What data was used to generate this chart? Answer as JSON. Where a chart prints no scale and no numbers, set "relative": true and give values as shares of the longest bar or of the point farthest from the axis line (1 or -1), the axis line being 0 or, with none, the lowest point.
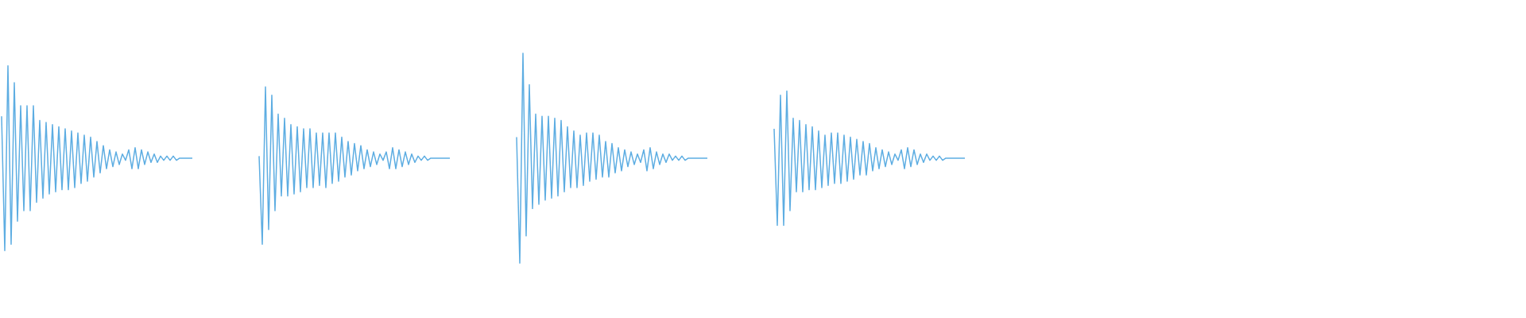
{
  "chart_data": {
    "type": "line",
    "relative": true,
    "categories": [
      null,
      null,
      null,
      null,
      null,
      null,
      null,
      null,
      null,
      null,
      null,
      null,
      null,
      null,
      null,
      null,
      null,
      null,
      null,
      null,
      null,
      null,
      null,
      null,
      null,
      null,
      null,
      null,
      null,
      null,
      null,
      null,
      null,
      null,
      null,
      null,
      null,
      null,
      null,
      null,
      null,
      null,
      null,
      null,
      null,
      null,
      null,
      null,
      null,
      null,
      null,
      null,
      null,
      null,
      null,
      null,
      null,
      null,
      null,
      null,
      null,
      null,
      null,
      null,
      null,
      null,
      null,
      null,
      null,
      null,
      null,
      null,
      null,
      null,
      null,
      null,
      null,
      null,
      null,
      null,
      null,
      null,
      null,
      null,
      null,
      null,
      null,
      null,
      null,
      null,
      null,
      null,
      null,
      null,
      null,
      null,
      null,
      null,
      null,
      null,
      null,
      null,
      null,
      null,
      null,
      null,
      null,
      null,
      null,
      null,
      null,
      null,
      null,
      null,
      null,
      null,
      null,
      null,
      null,
      null,
      null,
      null,
      null,
      null,
      null,
      null,
      null,
      null,
      null,
      null,
      null,
      null,
      null,
      null,
      null,
      null,
      null,
      null,
      null,
      null,
      null,
      null,
      null,
      null,
      null,
      null,
      null,
      null,
      null,
      null,
      null,
      null,
      null,
      null,
      null,
      null,
      null,
      null,
      null,
      null,
      null,
      null,
      null,
      null,
      null,
      null,
      null,
      null,
      null,
      null,
      null,
      null,
      null,
      null,
      null,
      null,
      null,
      null,
      null,
      null,
      null,
      null,
      null,
      null,
      null,
      null,
      null,
      null,
      null,
      null,
      null,
      null,
      null,
      null,
      null,
      null,
      null,
      null,
      null,
      null,
      null,
      null,
      null,
      null,
      null,
      null,
      null,
      null,
      null,
      null,
      null,
      null,
      null,
      null,
      null,
      null,
      null,
      null,
      null,
      null,
      null,
      null,
      null,
      null,
      null,
      null,
      null,
      null,
      null,
      null,
      null,
      null,
      null,
      null,
      null,
      null,
      null,
      null,
      null,
      null,
      null,
      null,
      null,
      null,
      null,
      null,
      null,
      null,
      null,
      null,
      null,
      null,
      null,
      null,
      null,
      null,
      null,
      null,
      null,
      null,
      null,
      null,
      null,
      null,
      null,
      null,
      null,
      null,
      null,
      null,
      null,
      null,
      null,
      null,
      null,
      null,
      null,
      null,
      null,
      null,
      null,
      null,
      null,
      null,
      null,
      null,
      null,
      null,
      null,
      null,
      null,
      null,
      null,
      null,
      null,
      null,
      null,
      null,
      null,
      null,
      null,
      null,
      null,
      null,
      null,
      null,
      null,
      null,
      null,
      null,
      null,
      null,
      null,
      null,
      null,
      null,
      null,
      null,
      null,
      null,
      null,
      null,
      null,
      null,
      null,
      null,
      null,
      null,
      null,
      null,
      null,
      null,
      null,
      null,
      null,
      null,
      null,
      null,
      null,
      null,
      null,
      null,
      null,
      null,
      null,
      null,
      null,
      null,
      null,
      null,
      null,
      null,
      null,
      null,
      null,
      null,
      null,
      null,
      null,
      null,
      null,
      null,
      null,
      null,
      null,
      null,
      null,
      null,
      null,
      null,
      null,
      null,
      null,
      null,
      null,
      null,
      null,
      null,
      null,
      null,
      null,
      null,
      null,
      null,
      null,
      null,
      null,
      null,
      null,
      null,
      null,
      null,
      null,
      null,
      null,
      null,
      null,
      null,
      null,
      null,
      null,
      null,
      null,
      null,
      null,
      null,
      null,
      null,
      null,
      null,
      null,
      null,
      null,
      null,
      null,
      null,
      null,
      null,
      null,
      null,
      null,
      null,
      null,
      null,
      null,
      null,
      null,
      null,
      null,
      null,
      null,
      null,
      null,
      null,
      null,
      null,
      null,
      null,
      null,
      null,
      null,
      null,
      null,
      null,
      null,
      null,
      null,
      null,
      null,
      null,
      null,
      null,
      null,
      null,
      null,
      null,
      null,
      null,
      null,
      null,
      null,
      null,
      null,
      null,
      null,
      null,
      null,
      null,
      null,
      null,
      null,
      null,
      null,
      null,
      null,
      null,
      null,
      null,
      null,
      null
    ],
    "series": [
      {
        "color": "#5dade2",
        "values": [
          0.7,
          0.06,
          0.94,
          0.09,
          0.86,
          0.2,
          0.75,
          0.25,
          0.75,
          0.25,
          0.75,
          0.29,
          0.68,
          0.31,
          0.67,
          0.33,
          0.66,
          0.34,
          0.65,
          0.35,
          0.64,
          0.35,
          0.63,
          0.36,
          0.62,
          0.38,
          0.61,
          0.39,
          0.6,
          0.41,
          0.58,
          0.43,
          0.56,
          0.45,
          0.54,
          0.46,
          0.53,
          0.47,
          0.52,
          0.49,
          0.54,
          0.45,
          0.55,
          0.45,
          0.54,
          0.47,
          0.53,
          0.48,
          0.52,
          0.48,
          0.51,
          0.49,
          0.51,
          0.49,
          0.51,
          0.49,
          0.5,
          0.5,
          0.5,
          0.5,
          0.5,
          null,
          null,
          null,
          null,
          null,
          null,
          null,
          null,
          null,
          null,
          null,
          null,
          null,
          null,
          null,
          null,
          null,
          null,
          null,
          null,
          null,
          null,
          null,
          null,
          null,
          null,
          null,
          null,
          null,
          null,
          null,
          null,
          null,
          null,
          null,
          null,
          null,
          null,
          null,
          null,
          null,
          null,
          null,
          null,
          null,
          null,
          null,
          null,
          null,
          null,
          null,
          null,
          null,
          null,
          null,
          null,
          null,
          null,
          null,
          null,
          null,
          null,
          null,
          null,
          null,
          null,
          null,
          null,
          null,
          null,
          null,
          null,
          null,
          null,
          null,
          null,
          null,
          null,
          null,
          null,
          null,
          null,
          null,
          null,
          null,
          null,
          null,
          null,
          null,
          null,
          null,
          null,
          null,
          null,
          null,
          null,
          null,
          null,
          null,
          null,
          null,
          null,
          null,
          null,
          null,
          null,
          null,
          null,
          null,
          null,
          null,
          null,
          null,
          null,
          null,
          null,
          null,
          null,
          null,
          null,
          null,
          null,
          null,
          null,
          null,
          null,
          null,
          null,
          null,
          null,
          null,
          null,
          null,
          null,
          null,
          null,
          null,
          null,
          null,
          null,
          null,
          null,
          null,
          null,
          null,
          null,
          null,
          null,
          null,
          null,
          null,
          null,
          null,
          null,
          null,
          null,
          null,
          null,
          null,
          null,
          null,
          null,
          null,
          null,
          null,
          null,
          null,
          null,
          null,
          null,
          null,
          null,
          null,
          null,
          null,
          null,
          null,
          null,
          null,
          null,
          null,
          null,
          null,
          null,
          null,
          null,
          null,
          null,
          null,
          null,
          null,
          null,
          null,
          null,
          null,
          null,
          null,
          null,
          null,
          null,
          null,
          null,
          null,
          null,
          null,
          null,
          null,
          null,
          null,
          null,
          null,
          null,
          null,
          null,
          null,
          null,
          null,
          null,
          null,
          null,
          null,
          null,
          null,
          null,
          null,
          null,
          null,
          null,
          null,
          null,
          null,
          null,
          null,
          null,
          null,
          null,
          null,
          null,
          null,
          null,
          null,
          null,
          null,
          null,
          null,
          null,
          null,
          null,
          null,
          null,
          null,
          null,
          null,
          null,
          null,
          null,
          null,
          null,
          null,
          null,
          null,
          null,
          null,
          null,
          null,
          null,
          null,
          null,
          null,
          null,
          null,
          null,
          null,
          null,
          null,
          null,
          null,
          null,
          null,
          null,
          null,
          null,
          null,
          null,
          null,
          null,
          null,
          null,
          null,
          null,
          null,
          null,
          null,
          null,
          null,
          null,
          null,
          null,
          null,
          null,
          null,
          null,
          null,
          null,
          null,
          null,
          null,
          null,
          null,
          null,
          null,
          null,
          null,
          null,
          null,
          null,
          null,
          null,
          null,
          null,
          null,
          null,
          null,
          null,
          null,
          null,
          null,
          null,
          null,
          null,
          null,
          null,
          null,
          null,
          null,
          null,
          null,
          null,
          null,
          null,
          null,
          null,
          null,
          null,
          null,
          null,
          null,
          null,
          null,
          null,
          null,
          null,
          null,
          null,
          null,
          null,
          null,
          null,
          null,
          null,
          null,
          null,
          null,
          null,
          null,
          null,
          null,
          null,
          null,
          null,
          null,
          null,
          null,
          null,
          null,
          null,
          null,
          null,
          null,
          null,
          null,
          null,
          null,
          null,
          null,
          null,
          null,
          null,
          null,
          null,
          null,
          null,
          null,
          null,
          null,
          null,
          null,
          null,
          null,
          null,
          null,
          null,
          null,
          null,
          null,
          null,
          null,
          null,
          null,
          null,
          null,
          null,
          null,
          null,
          null,
          null,
          null,
          null,
          null
        ]
      },
      {
        "color": "#5dade2",
        "values": [
          null,
          null,
          null,
          null,
          null,
          null,
          null,
          null,
          null,
          null,
          null,
          null,
          null,
          null,
          null,
          null,
          null,
          null,
          null,
          null,
          null,
          null,
          null,
          null,
          null,
          null,
          null,
          null,
          null,
          null,
          null,
          null,
          null,
          null,
          null,
          null,
          null,
          null,
          null,
          null,
          null,
          null,
          null,
          null,
          null,
          null,
          null,
          null,
          null,
          null,
          null,
          null,
          null,
          null,
          null,
          null,
          null,
          null,
          null,
          null,
          null,
          null,
          null,
          null,
          null,
          null,
          null,
          null,
          null,
          null,
          null,
          null,
          null,
          null,
          null,
          null,
          null,
          null,
          null,
          null,
          null,
          0.51,
          0.09,
          0.84,
          0.16,
          0.8,
          0.25,
          0.71,
          0.32,
          0.69,
          0.32,
          0.66,
          0.33,
          0.65,
          0.34,
          0.64,
          0.36,
          0.64,
          0.36,
          0.62,
          0.37,
          0.62,
          0.36,
          0.62,
          0.38,
          0.62,
          0.39,
          0.6,
          0.41,
          0.58,
          0.42,
          0.57,
          0.44,
          0.56,
          0.45,
          0.54,
          0.46,
          0.53,
          0.47,
          0.52,
          0.49,
          0.53,
          0.45,
          0.55,
          0.45,
          0.54,
          0.46,
          0.53,
          0.47,
          0.52,
          0.48,
          0.51,
          0.49,
          0.51,
          0.49,
          0.5,
          0.5,
          0.5,
          0.5,
          0.5,
          0.5,
          0.5,
          null,
          null,
          null,
          null,
          null,
          null,
          null,
          null,
          null,
          null,
          null,
          null,
          null,
          null,
          null,
          null,
          null,
          null,
          null,
          null,
          null,
          null,
          null,
          null,
          null,
          null,
          null,
          null,
          null,
          null,
          null,
          null,
          null,
          null,
          null,
          null,
          null,
          null,
          null,
          null,
          null,
          null,
          null,
          null,
          null,
          null,
          null,
          null,
          null,
          null,
          null,
          null,
          null,
          null,
          null,
          null,
          null,
          null,
          null,
          null,
          null,
          null,
          null,
          null,
          null,
          null,
          null,
          null,
          null,
          null,
          null,
          null,
          null,
          null,
          null,
          null,
          null,
          null,
          null,
          null,
          null,
          null,
          null,
          null,
          null,
          null,
          null,
          null,
          null,
          null,
          null,
          null,
          null,
          null,
          null,
          null,
          null,
          null,
          null,
          null,
          null,
          null,
          null,
          null,
          null,
          null,
          null,
          null,
          null,
          null,
          null,
          null,
          null,
          null,
          null,
          null,
          null,
          null,
          null,
          null,
          null,
          null,
          null,
          null,
          null,
          null,
          null,
          null,
          null,
          null,
          null,
          null,
          null,
          null,
          null,
          null,
          null,
          null,
          null,
          null,
          null,
          null,
          null,
          null,
          null,
          null,
          null,
          null,
          null,
          null,
          null,
          null,
          null,
          null,
          null,
          null,
          null,
          null,
          null,
          null,
          null,
          null,
          null,
          null,
          null,
          null,
          null,
          null,
          null,
          null,
          null,
          null,
          null,
          null,
          null,
          null,
          null,
          null,
          null,
          null,
          null,
          null,
          null,
          null,
          null,
          null,
          null,
          null,
          null,
          null,
          null,
          null,
          null,
          null,
          null,
          null,
          null,
          null,
          null,
          null,
          null,
          null,
          null,
          null,
          null,
          null,
          null,
          null,
          null,
          null,
          null,
          null,
          null,
          null,
          null,
          null,
          null,
          null,
          null,
          null,
          null,
          null,
          null,
          null,
          null,
          null,
          null,
          null,
          null,
          null,
          null,
          null,
          null,
          null,
          null,
          null,
          null,
          null,
          null,
          null,
          null,
          null,
          null,
          null,
          null,
          null,
          null,
          null,
          null,
          null,
          null,
          null,
          null,
          null,
          null,
          null,
          null,
          null,
          null,
          null,
          null,
          null,
          null,
          null,
          null,
          null,
          null,
          null,
          null,
          null,
          null,
          null,
          null,
          null,
          null,
          null,
          null,
          null,
          null,
          null,
          null,
          null,
          null,
          null,
          null,
          null,
          null,
          null,
          null,
          null,
          null,
          null,
          null,
          null,
          null,
          null,
          null,
          null,
          null,
          null,
          null,
          null,
          null,
          null,
          null,
          null,
          null,
          null,
          null,
          null,
          null,
          null,
          null,
          null,
          null,
          null,
          null,
          null,
          null,
          null,
          null,
          null,
          null,
          null,
          null,
          null,
          null,
          null,
          null,
          null,
          null,
          null,
          null,
          null,
          null,
          null,
          null,
          null
        ]
      },
      {
        "color": "#5dade2",
        "values": [
          null,
          null,
          null,
          null,
          null,
          null,
          null,
          null,
          null,
          null,
          null,
          null,
          null,
          null,
          null,
          null,
          null,
          null,
          null,
          null,
          null,
          null,
          null,
          null,
          null,
          null,
          null,
          null,
          null,
          null,
          null,
          null,
          null,
          null,
          null,
          null,
          null,
          null,
          null,
          null,
          null,
          null,
          null,
          null,
          null,
          null,
          null,
          null,
          null,
          null,
          null,
          null,
          null,
          null,
          null,
          null,
          null,
          null,
          null,
          null,
          null,
          null,
          null,
          null,
          null,
          null,
          null,
          null,
          null,
          null,
          null,
          null,
          null,
          null,
          null,
          null,
          null,
          null,
          null,
          null,
          null,
          null,
          null,
          null,
          null,
          null,
          null,
          null,
          null,
          null,
          null,
          null,
          null,
          null,
          null,
          null,
          null,
          null,
          null,
          null,
          null,
          null,
          null,
          null,
          null,
          null,
          null,
          null,
          null,
          null,
          null,
          null,
          null,
          null,
          null,
          null,
          null,
          null,
          null,
          null,
          null,
          null,
          null,
          null,
          null,
          null,
          null,
          null,
          null,
          null,
          null,
          null,
          null,
          null,
          null,
          null,
          null,
          null,
          null,
          null,
          null,
          null,
          null,
          null,
          null,
          null,
          null,
          null,
          null,
          null,
          null,
          null,
          null,
          null,
          null,
          null,
          null,
          null,
          null,
          null,
          null,
          null,
          0.6,
          0,
          1,
          0.13,
          0.85,
          0.26,
          0.71,
          0.28,
          0.7,
          0.3,
          0.7,
          0.31,
          0.69,
          0.32,
          0.68,
          0.34,
          0.65,
          0.36,
          0.63,
          0.36,
          0.61,
          0.37,
          0.62,
          0.39,
          0.62,
          0.4,
          0.61,
          0.41,
          0.58,
          0.41,
          0.57,
          0.43,
          0.55,
          0.44,
          0.54,
          0.46,
          0.53,
          0.47,
          0.52,
          0.48,
          0.54,
          0.44,
          0.55,
          0.45,
          0.53,
          0.47,
          0.52,
          0.48,
          0.52,
          0.49,
          0.51,
          0.49,
          0.51,
          0.49,
          0.5,
          0.5,
          0.5,
          0.5,
          0.5,
          0.5,
          0.5,
          null,
          null,
          null,
          null,
          null,
          null,
          null,
          null,
          null,
          null,
          null,
          null,
          null,
          null,
          null,
          null,
          null,
          null,
          null,
          null,
          null,
          null,
          null,
          null,
          null,
          null,
          null,
          null,
          null,
          null,
          null,
          null,
          null,
          null,
          null,
          null,
          null,
          null,
          null,
          null,
          null,
          null,
          null,
          null,
          null,
          null,
          null,
          null,
          null,
          null,
          null,
          null,
          null,
          null,
          null,
          null,
          null,
          null,
          null,
          null,
          null,
          null,
          null,
          null,
          null,
          null,
          null,
          null,
          null,
          null,
          null,
          null,
          null,
          null,
          null,
          null,
          null,
          null,
          null,
          null,
          null,
          null,
          null,
          null,
          null,
          null,
          null,
          null,
          null,
          null,
          null,
          null,
          null,
          null,
          null,
          null,
          null,
          null,
          null,
          null,
          null,
          null,
          null,
          null,
          null,
          null,
          null,
          null,
          null,
          null,
          null,
          null,
          null,
          null,
          null,
          null,
          null,
          null,
          null,
          null,
          null,
          null,
          null,
          null,
          null,
          null,
          null,
          null,
          null,
          null,
          null,
          null,
          null,
          null,
          null,
          null,
          null,
          null,
          null,
          null,
          null,
          null,
          null,
          null,
          null,
          null,
          null,
          null,
          null,
          null,
          null,
          null,
          null,
          null,
          null,
          null,
          null,
          null,
          null,
          null,
          null,
          null,
          null,
          null,
          null,
          null,
          null,
          null,
          null,
          null,
          null,
          null,
          null,
          null,
          null,
          null,
          null,
          null,
          null,
          null,
          null,
          null,
          null,
          null,
          null,
          null,
          null,
          null,
          null,
          null,
          null,
          null,
          null,
          null,
          null,
          null,
          null,
          null,
          null,
          null,
          null,
          null,
          null,
          null,
          null,
          null,
          null,
          null,
          null,
          null,
          null,
          null,
          null,
          null,
          null,
          null,
          null,
          null,
          null,
          null,
          null,
          null,
          null,
          null,
          null,
          null,
          null,
          null,
          null,
          null,
          null,
          null,
          null,
          null,
          null,
          null,
          null,
          null,
          null,
          null,
          null,
          null,
          null,
          null,
          null,
          null,
          null,
          null,
          null,
          null,
          null,
          null,
          null,
          null,
          null,
          null,
          null
        ]
      },
      {
        "color": "#5dade2",
        "values": [
          null,
          null,
          null,
          null,
          null,
          null,
          null,
          null,
          null,
          null,
          null,
          null,
          null,
          null,
          null,
          null,
          null,
          null,
          null,
          null,
          null,
          null,
          null,
          null,
          null,
          null,
          null,
          null,
          null,
          null,
          null,
          null,
          null,
          null,
          null,
          null,
          null,
          null,
          null,
          null,
          null,
          null,
          null,
          null,
          null,
          null,
          null,
          null,
          null,
          null,
          null,
          null,
          null,
          null,
          null,
          null,
          null,
          null,
          null,
          null,
          null,
          null,
          null,
          null,
          null,
          null,
          null,
          null,
          null,
          null,
          null,
          null,
          null,
          null,
          null,
          null,
          null,
          null,
          null,
          null,
          null,
          null,
          null,
          null,
          null,
          null,
          null,
          null,
          null,
          null,
          null,
          null,
          null,
          null,
          null,
          null,
          null,
          null,
          null,
          null,
          null,
          null,
          null,
          null,
          null,
          null,
          null,
          null,
          null,
          null,
          null,
          null,
          null,
          null,
          null,
          null,
          null,
          null,
          null,
          null,
          null,
          null,
          null,
          null,
          null,
          null,
          null,
          null,
          null,
          null,
          null,
          null,
          null,
          null,
          null,
          null,
          null,
          null,
          null,
          null,
          null,
          null,
          null,
          null,
          null,
          null,
          null,
          null,
          null,
          null,
          null,
          null,
          null,
          null,
          null,
          null,
          null,
          null,
          null,
          null,
          null,
          null,
          null,
          null,
          null,
          null,
          null,
          null,
          null,
          null,
          null,
          null,
          null,
          null,
          null,
          null,
          null,
          null,
          null,
          null,
          null,
          null,
          null,
          null,
          null,
          null,
          null,
          null,
          null,
          null,
          null,
          null,
          null,
          null,
          null,
          null,
          null,
          null,
          null,
          null,
          null,
          null,
          null,
          null,
          null,
          null,
          null,
          null,
          null,
          null,
          null,
          null,
          null,
          null,
          null,
          null,
          null,
          null,
          null,
          null,
          null,
          null,
          null,
          null,
          null,
          null,
          null,
          null,
          null,
          null,
          null,
          null,
          null,
          null,
          null,
          null,
          null,
          null,
          null,
          null,
          null,
          null,
          null,
          0.64,
          0.18,
          0.8,
          0.18,
          0.82,
          0.25,
          0.69,
          0.34,
          0.68,
          0.34,
          0.66,
          0.35,
          0.65,
          0.35,
          0.63,
          0.36,
          0.61,
          0.37,
          0.62,
          0.38,
          0.62,
          0.38,
          0.61,
          0.39,
          0.6,
          0.4,
          0.59,
          0.42,
          0.58,
          0.42,
          0.57,
          0.44,
          0.55,
          0.45,
          0.54,
          0.46,
          0.53,
          0.47,
          0.52,
          0.49,
          0.54,
          0.45,
          0.55,
          0.46,
          0.54,
          0.47,
          0.52,
          0.48,
          0.52,
          0.49,
          0.51,
          0.49,
          0.51,
          0.49,
          0.5,
          0.5,
          0.5,
          0.5,
          0.5,
          0.5,
          0.5,
          null,
          null,
          null,
          null,
          null,
          null,
          null,
          null,
          null,
          null,
          null,
          null,
          null,
          null,
          null,
          null,
          null,
          null,
          null,
          null,
          null,
          null,
          null,
          null,
          null,
          null,
          null,
          null,
          null,
          null,
          null,
          null,
          null,
          null,
          null,
          null,
          null,
          null,
          null,
          null,
          null,
          null,
          null,
          null,
          null,
          null,
          null,
          null,
          null,
          null,
          null,
          null,
          null,
          null,
          null,
          null,
          null,
          null,
          null,
          null,
          null,
          null,
          null,
          null,
          null,
          null,
          null,
          null,
          null,
          null,
          null,
          null,
          null,
          null,
          null,
          null,
          null,
          null,
          null,
          null,
          null,
          null,
          null,
          null,
          null,
          null,
          null,
          null,
          null,
          null,
          null,
          null,
          null,
          null,
          null,
          null,
          null,
          null,
          null,
          null,
          null,
          null,
          null,
          null,
          null,
          null,
          null,
          null,
          null,
          null,
          null,
          null,
          null,
          null,
          null,
          null,
          null,
          null,
          null,
          null,
          null,
          null,
          null,
          null,
          null,
          null,
          null,
          null,
          null,
          null,
          null,
          null,
          null,
          null,
          null,
          null,
          null,
          null,
          null,
          null,
          null,
          null,
          null,
          null,
          null,
          null,
          null,
          null,
          null,
          null,
          null,
          null,
          null,
          null,
          null,
          null,
          null,
          null,
          null,
          null,
          null,
          null,
          null,
          null,
          null,
          null,
          null,
          null,
          null,
          null,
          null,
          null,
          null,
          null,
          null,
          null
        ]
      }
    ]
  }
}
